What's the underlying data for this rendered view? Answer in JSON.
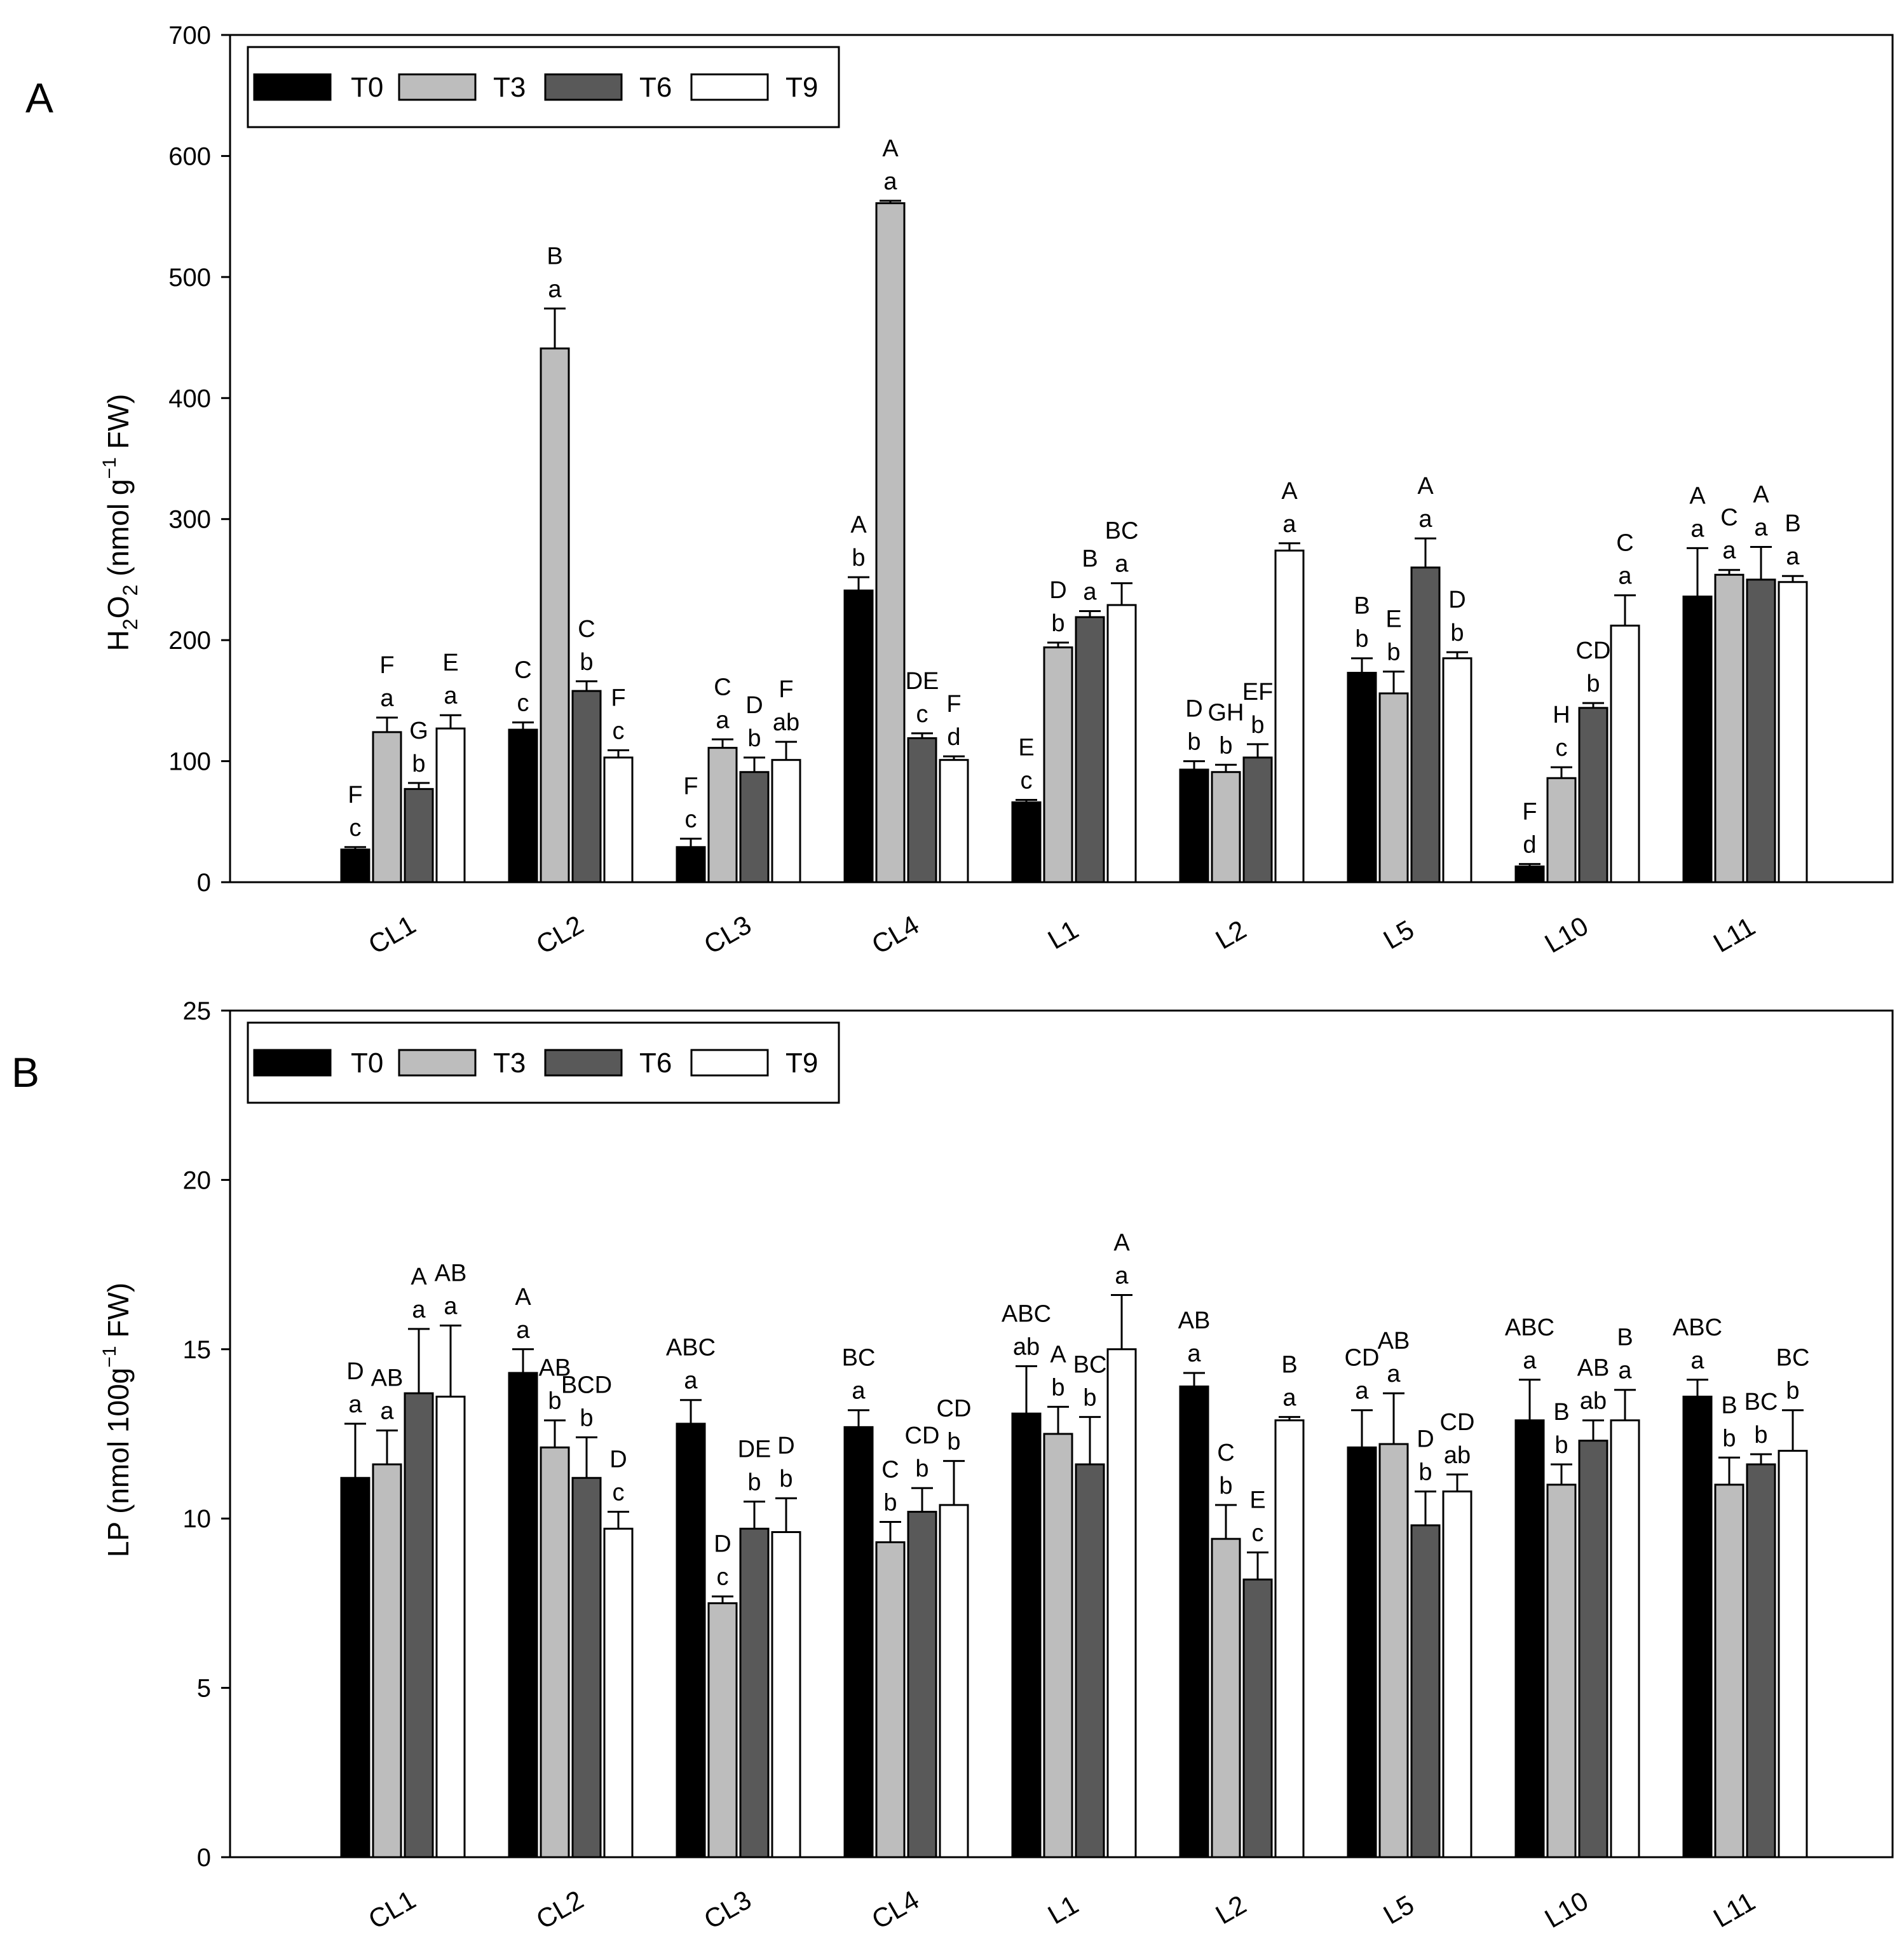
{
  "colors": {
    "T0": "#000000",
    "T3": "#bdbdbd",
    "T6": "#595959",
    "T9": "#ffffff"
  },
  "chart_data": [
    {
      "panel_label": "A",
      "type": "bar",
      "ylabel": {
        "base": "H",
        "sub1": "2",
        "mid": "O",
        "sub2": "2",
        "unit_open": "(nmol g",
        "exp": "−1",
        "unit_close": "FW)"
      },
      "ylim": [
        0,
        700
      ],
      "yticks": [
        "0",
        "100",
        "200",
        "300",
        "400",
        "500",
        "600",
        "700"
      ],
      "categories": [
        "CL1",
        "CL2",
        "CL3",
        "CL4",
        "L1",
        "L2",
        "L5",
        "L10",
        "L11"
      ],
      "legend": [
        "T0",
        "T3",
        "T6",
        "T9"
      ],
      "series": [
        {
          "name": "T0",
          "values": [
            27,
            126,
            29,
            241,
            66,
            93,
            173,
            13,
            236
          ],
          "errors": [
            2,
            6,
            7,
            11,
            2,
            7,
            12,
            2,
            40
          ],
          "upper": [
            "F",
            "C",
            "F",
            "A",
            "E",
            "D",
            "B",
            "F",
            "A"
          ],
          "lower": [
            "c",
            "c",
            "c",
            "b",
            "c",
            "b",
            "b",
            "d",
            "a"
          ]
        },
        {
          "name": "T3",
          "values": [
            124,
            441,
            111,
            561,
            194,
            91,
            156,
            86,
            254
          ],
          "errors": [
            12,
            33,
            7,
            2,
            4,
            6,
            18,
            9,
            4
          ],
          "upper": [
            "F",
            "B",
            "C",
            "A",
            "D",
            "GH",
            "E",
            "H",
            "C"
          ],
          "lower": [
            "a",
            "a",
            "a",
            "a",
            "b",
            "b",
            "b",
            "c",
            "a"
          ]
        },
        {
          "name": "T6",
          "values": [
            77,
            158,
            91,
            119,
            219,
            103,
            260,
            144,
            250
          ],
          "errors": [
            5,
            8,
            12,
            4,
            5,
            11,
            24,
            4,
            27
          ],
          "upper": [
            "G",
            "C",
            "D",
            "DE",
            "B",
            "EF",
            "A",
            "CD",
            "A"
          ],
          "lower": [
            "b",
            "b",
            "b",
            "c",
            "a",
            "b",
            "a",
            "b",
            "a"
          ]
        },
        {
          "name": "T9",
          "values": [
            127,
            103,
            101,
            101,
            229,
            274,
            185,
            212,
            248
          ],
          "errors": [
            11,
            6,
            15,
            3,
            18,
            6,
            5,
            25,
            5
          ],
          "upper": [
            "E",
            "F",
            "F",
            "F",
            "BC",
            "A",
            "D",
            "C",
            "B"
          ],
          "lower": [
            "a",
            "c",
            "ab",
            "d",
            "a",
            "a",
            "b",
            "a",
            "a"
          ]
        }
      ]
    },
    {
      "panel_label": "B",
      "type": "bar",
      "ylabel": {
        "base": "LP",
        "unit_open": "(nmol 100g",
        "exp": "−1",
        "unit_close": "FW)"
      },
      "ylim": [
        0,
        25
      ],
      "yticks": [
        "0",
        "5",
        "10",
        "15",
        "20",
        "25"
      ],
      "categories": [
        "CL1",
        "CL2",
        "CL3",
        "CL4",
        "L1",
        "L2",
        "L5",
        "L10",
        "L11"
      ],
      "legend": [
        "T0",
        "T3",
        "T6",
        "T9"
      ],
      "series": [
        {
          "name": "T0",
          "values": [
            11.2,
            14.3,
            12.8,
            12.7,
            13.1,
            13.9,
            12.1,
            12.9,
            13.6
          ],
          "errors": [
            1.6,
            0.7,
            0.7,
            0.5,
            1.4,
            0.4,
            1.1,
            1.2,
            0.5
          ],
          "upper": [
            "D",
            "A",
            "ABC",
            "BC",
            "ABC",
            "AB",
            "CD",
            "ABC",
            "ABC"
          ],
          "lower": [
            "a",
            "a",
            "a",
            "a",
            "ab",
            "a",
            "a",
            "a",
            "a"
          ]
        },
        {
          "name": "T3",
          "values": [
            11.6,
            12.1,
            7.5,
            9.3,
            12.5,
            9.4,
            12.2,
            11.0,
            11.0
          ],
          "errors": [
            1.0,
            0.8,
            0.2,
            0.6,
            0.8,
            1.0,
            1.5,
            0.6,
            0.8
          ],
          "upper": [
            "AB",
            "AB",
            "D",
            "C",
            "A",
            "C",
            "AB",
            "B",
            "B"
          ],
          "lower": [
            "a",
            "b",
            "c",
            "b",
            "b",
            "b",
            "a",
            "b",
            "b"
          ]
        },
        {
          "name": "T6",
          "values": [
            13.7,
            11.2,
            9.7,
            10.2,
            11.6,
            8.2,
            9.8,
            12.3,
            11.6
          ],
          "errors": [
            1.9,
            1.2,
            0.8,
            0.7,
            1.4,
            0.8,
            1.0,
            0.6,
            0.3
          ],
          "upper": [
            "A",
            "BCD",
            "DE",
            "CD",
            "BC",
            "E",
            "D",
            "AB",
            "BC"
          ],
          "lower": [
            "a",
            "b",
            "b",
            "b",
            "b",
            "c",
            "b",
            "ab",
            "b"
          ]
        },
        {
          "name": "T9",
          "values": [
            13.6,
            9.7,
            9.6,
            10.4,
            15.0,
            12.9,
            10.8,
            12.9,
            12.0
          ],
          "errors": [
            2.1,
            0.5,
            1.0,
            1.3,
            1.6,
            0.1,
            0.5,
            0.9,
            1.2
          ],
          "upper": [
            "AB",
            "D",
            "D",
            "CD",
            "A",
            "B",
            "CD",
            "B",
            "BC"
          ],
          "lower": [
            "a",
            "c",
            "b",
            "b",
            "a",
            "a",
            "ab",
            "a",
            "b"
          ]
        }
      ]
    }
  ]
}
